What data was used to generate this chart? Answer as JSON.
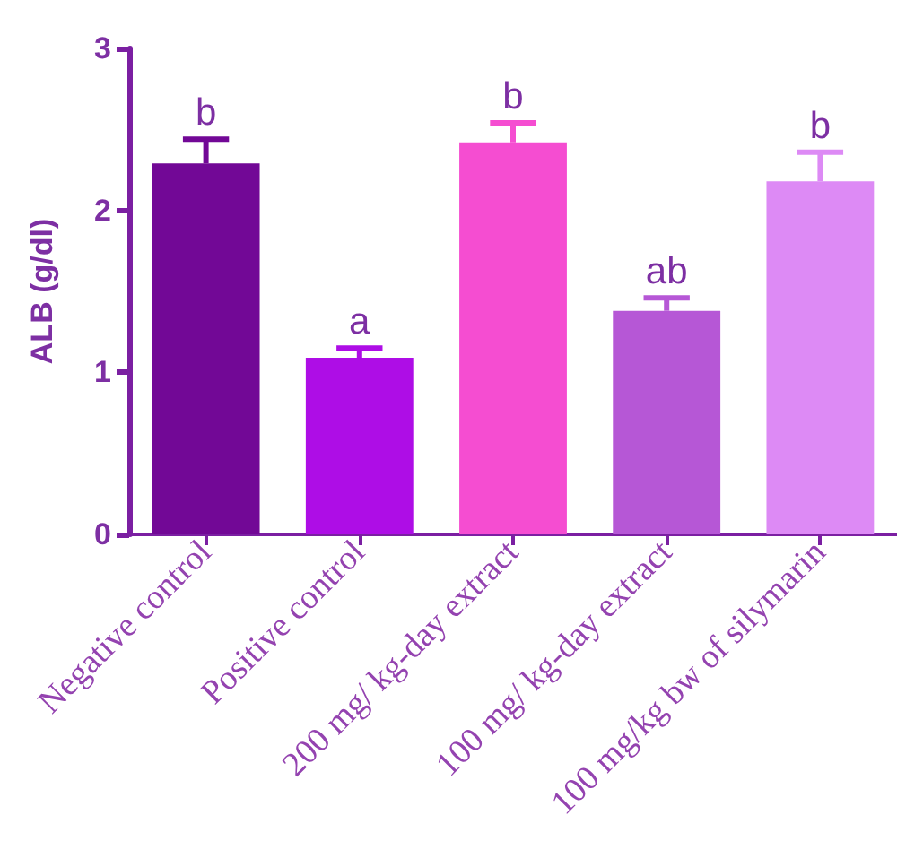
{
  "chart_data": {
    "type": "bar",
    "ylabel": "ALB (g/dl)",
    "categories": [
      "Negative control",
      "Positive control",
      "200 mg/ kg-day extract",
      "100 mg/ kg-day extract",
      "100 mg/kg bw of silymarin"
    ],
    "values": [
      2.29,
      1.09,
      2.42,
      1.38,
      2.18
    ],
    "errors": [
      0.15,
      0.06,
      0.12,
      0.08,
      0.18
    ],
    "colors": [
      "#720896",
      "#ae0de6",
      "#f54dd1",
      "#b657d6",
      "#dd8af5"
    ],
    "ylim": [
      0,
      3
    ],
    "yticks": [
      0,
      1,
      2,
      3
    ],
    "annotations": [
      {
        "text": "b",
        "x": "Negative control",
        "y": 2.44
      },
      {
        "text": "a",
        "x": "Positive control",
        "y": 1.15
      },
      {
        "text": "b",
        "x": "200 mg/ kg-day extract",
        "y": 2.54
      },
      {
        "text": "ab",
        "x": "100 mg/ kg-day extract",
        "y": 1.46
      },
      {
        "text": "b",
        "x": "100 mg/kg bw of silymarin",
        "y": 2.36
      }
    ]
  }
}
